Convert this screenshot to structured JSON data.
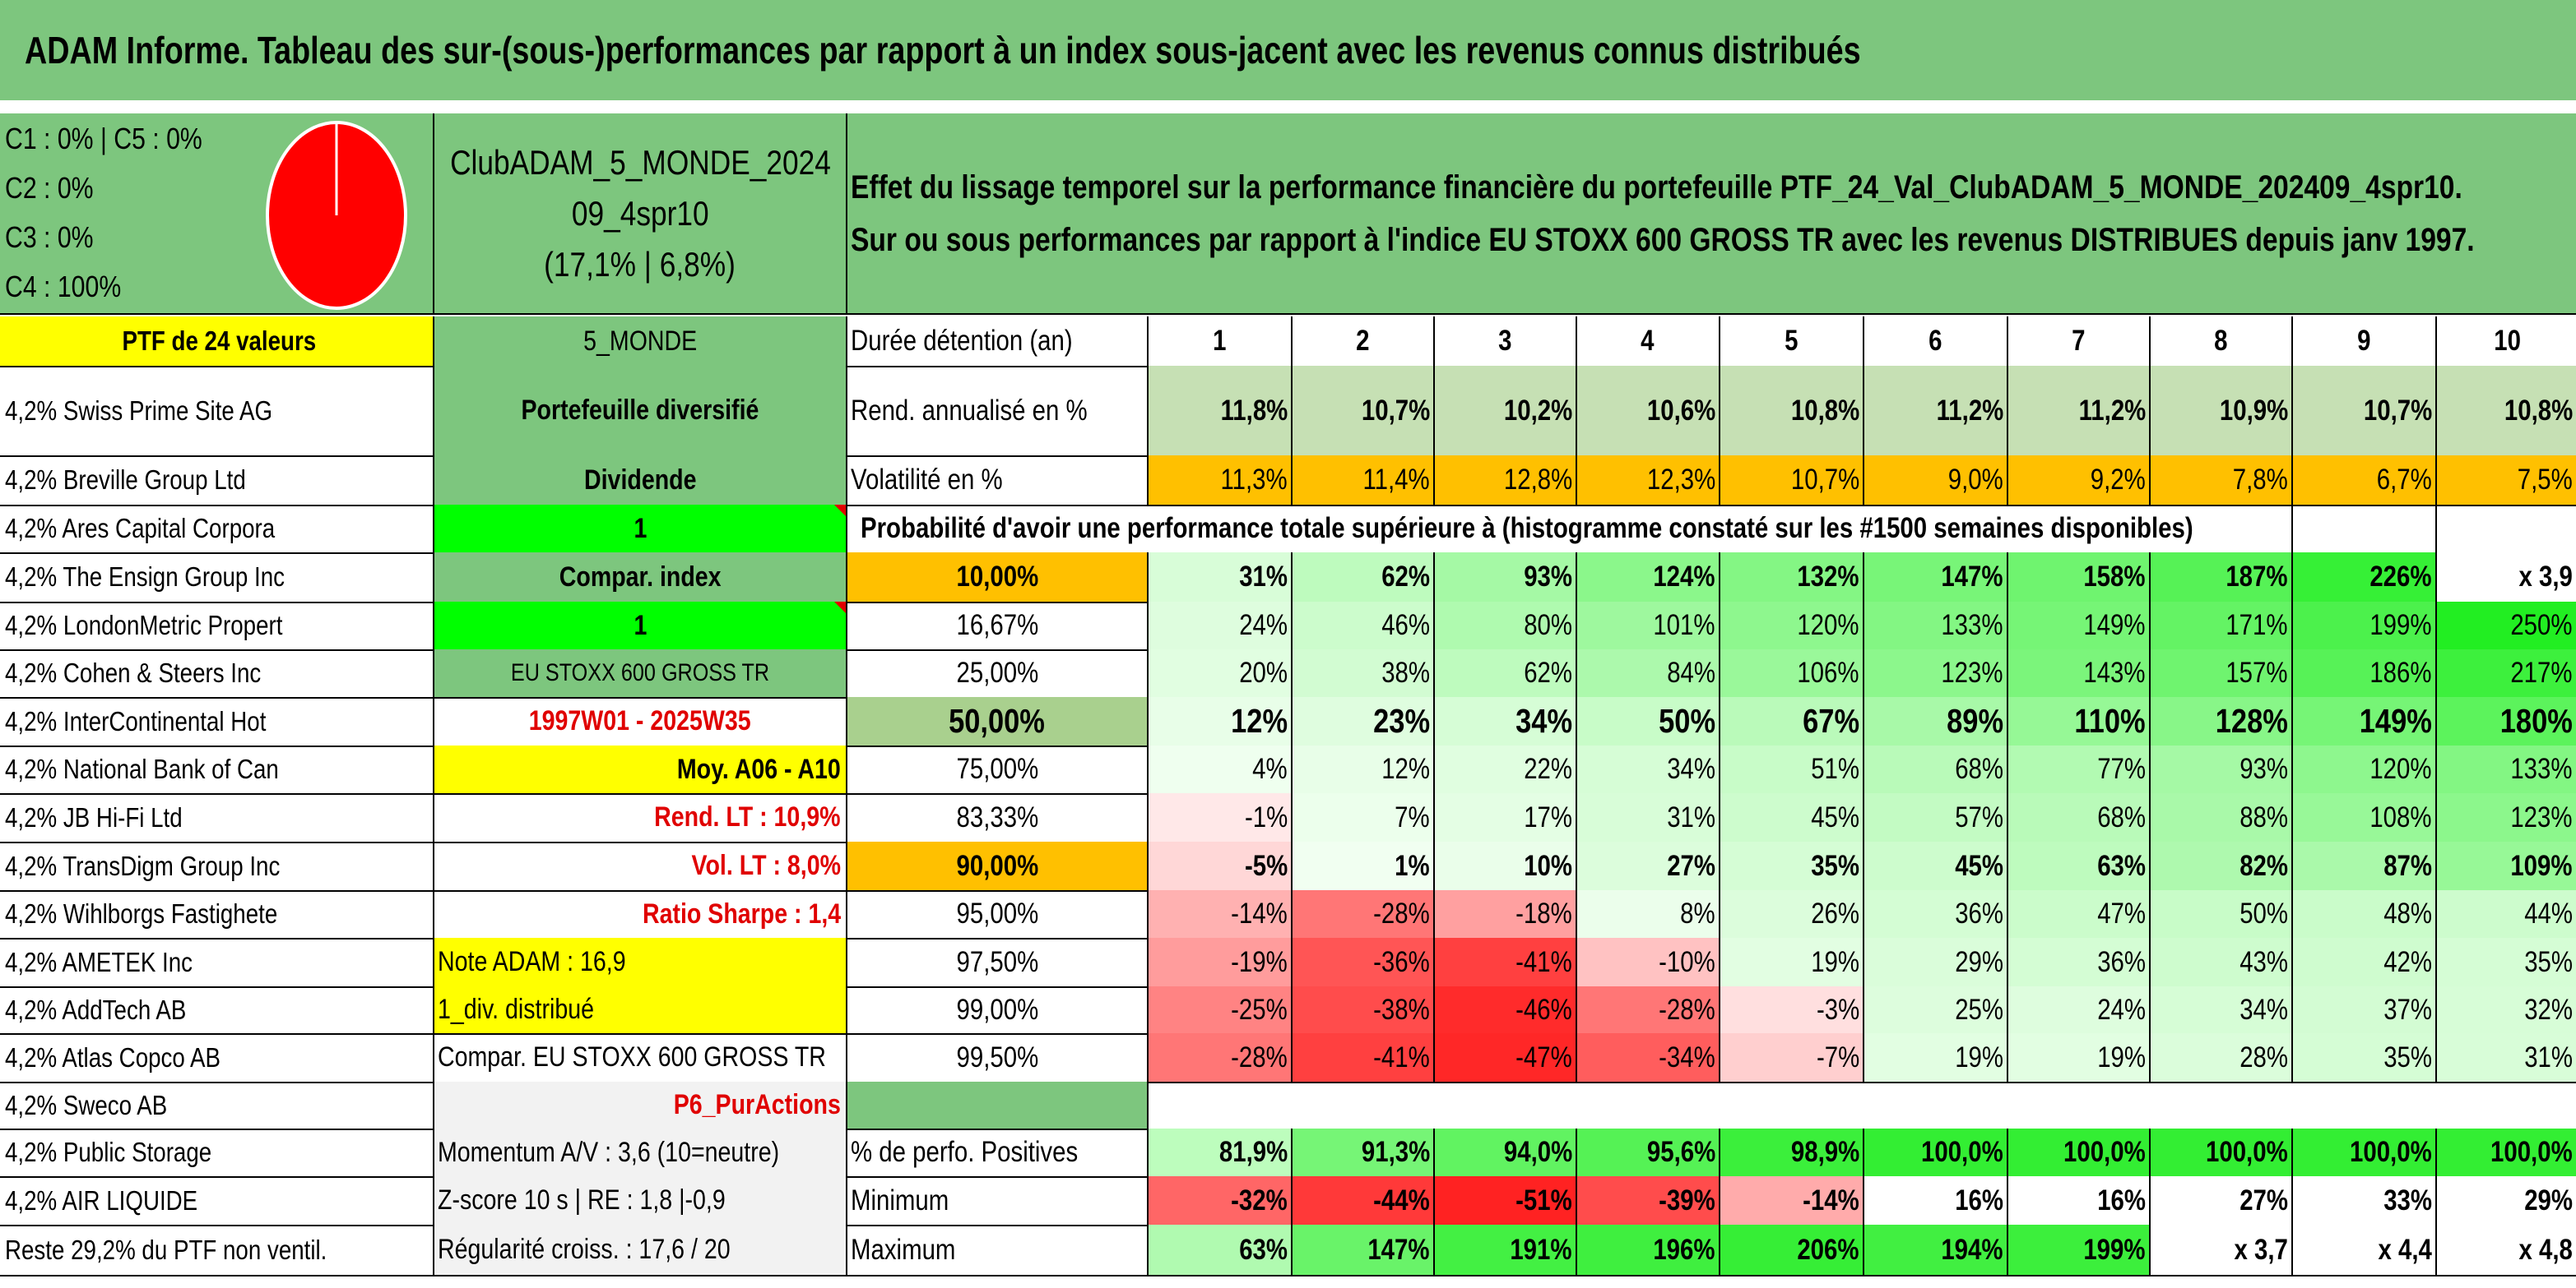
{
  "title": "ADAM Informe. Tableau des sur-(sous-)performances par rapport à un index sous-jacent avec les revenus connus distribués",
  "legend": {
    "c1_c5": "C1 : 0% | C5 : 0%",
    "c2": "C2 : 0%",
    "c3": "C3 : 0%",
    "c4": "C4 : 100%",
    "pie_color": "#ff0000"
  },
  "portfolio": {
    "name_line1": "ClubADAM_5_MONDE_2024",
    "name_line2": "09_4spr10",
    "name_line3": "(17,1% | 6,8%)"
  },
  "description": {
    "line1": "Effet du lissage temporel sur la performance financière du portefeuille PTF_24_Val_ClubADAM_5_MONDE_202409_4spr10.",
    "line2": "Sur ou sous performances par rapport à l'indice EU STOXX 600 GROSS TR avec les revenus DISTRIBUES depuis janv 1997."
  },
  "holdings": [
    "PTF de 24 valeurs",
    "4,2% Swiss Prime Site AG",
    "4,2% Breville Group Ltd",
    "4,2% Ares Capital Corpora",
    "4,2% The Ensign Group Inc",
    "4,2% LondonMetric Propert",
    "4,2% Cohen & Steers Inc",
    "4,2% InterContinental Hot",
    "4,2% National Bank of Can",
    "4,2% JB Hi-Fi Ltd",
    "4,2% TransDigm Group Inc",
    "4,2% Wihlborgs Fastighete",
    "4,2% AMETEK Inc",
    "4,2% AddTech AB",
    "4,2% Atlas Copco AB",
    "4,2% Sweco AB",
    "4,2% Public Storage",
    "4,2% AIR LIQUIDE",
    "Reste 29,2% du PTF non ventil."
  ],
  "info": [
    "5_MONDE",
    "Portefeuille diversifié",
    "Dividende",
    "1",
    "Compar. index",
    "1",
    "EU STOXX 600 GROSS TR",
    "1997W01 - 2025W35",
    "Moy. A06 - A10",
    "Rend. LT : 10,9%",
    "Vol. LT : 8,0%",
    "Ratio Sharpe : 1,4",
    "Note ADAM : 16,9",
    "1_div. distribué",
    "Compar. EU STOXX 600 GROSS TR",
    "P6_PurActions",
    "Momentum A/V : 3,6 (10=neutre)",
    "Z-score 10 s | RE : 1,8 |-0,9",
    "Régularité croiss. : 17,6 / 20"
  ],
  "duration": {
    "label": "Durée détention (an)",
    "years": [
      "1",
      "2",
      "3",
      "4",
      "5",
      "6",
      "7",
      "8",
      "9",
      "10"
    ]
  },
  "annual_return": {
    "label": "Rend. annualisé en %",
    "values": [
      "11,8%",
      "10,7%",
      "10,2%",
      "10,6%",
      "10,8%",
      "11,2%",
      "11,2%",
      "10,9%",
      "10,7%",
      "10,8%"
    ]
  },
  "volatility": {
    "label": "Volatilité en %",
    "values": [
      "11,3%",
      "11,4%",
      "12,8%",
      "12,3%",
      "10,7%",
      "9,0%",
      "9,2%",
      "7,8%",
      "6,7%",
      "7,5%"
    ]
  },
  "probability_header": "Probabilité d'avoir une performance totale supérieure à (histogramme constaté sur les #1500 semaines disponibles)",
  "percentile_rows": [
    {
      "label": "10,00%",
      "values": [
        "31%",
        "62%",
        "93%",
        "124%",
        "132%",
        "147%",
        "158%",
        "187%",
        "226%",
        "x 3,9"
      ]
    },
    {
      "label": "16,67%",
      "values": [
        "24%",
        "46%",
        "80%",
        "101%",
        "120%",
        "133%",
        "149%",
        "171%",
        "199%",
        "250%"
      ]
    },
    {
      "label": "25,00%",
      "values": [
        "20%",
        "38%",
        "62%",
        "84%",
        "106%",
        "123%",
        "143%",
        "157%",
        "186%",
        "217%"
      ]
    },
    {
      "label": "50,00%",
      "values": [
        "12%",
        "23%",
        "34%",
        "50%",
        "67%",
        "89%",
        "110%",
        "128%",
        "149%",
        "180%"
      ]
    },
    {
      "label": "75,00%",
      "values": [
        "4%",
        "12%",
        "22%",
        "34%",
        "51%",
        "68%",
        "77%",
        "93%",
        "120%",
        "133%"
      ]
    },
    {
      "label": "83,33%",
      "values": [
        "-1%",
        "7%",
        "17%",
        "31%",
        "45%",
        "57%",
        "68%",
        "88%",
        "108%",
        "123%"
      ]
    },
    {
      "label": "90,00%",
      "values": [
        "-5%",
        "1%",
        "10%",
        "27%",
        "35%",
        "45%",
        "63%",
        "82%",
        "87%",
        "109%"
      ]
    },
    {
      "label": "95,00%",
      "values": [
        "-14%",
        "-28%",
        "-18%",
        "8%",
        "26%",
        "36%",
        "47%",
        "50%",
        "48%",
        "44%"
      ]
    },
    {
      "label": "97,50%",
      "values": [
        "-19%",
        "-36%",
        "-41%",
        "-10%",
        "19%",
        "29%",
        "36%",
        "43%",
        "42%",
        "35%"
      ]
    },
    {
      "label": "99,00%",
      "values": [
        "-25%",
        "-38%",
        "-46%",
        "-28%",
        "-3%",
        "25%",
        "24%",
        "34%",
        "37%",
        "32%"
      ]
    },
    {
      "label": "99,50%",
      "values": [
        "-28%",
        "-41%",
        "-47%",
        "-34%",
        "-7%",
        "19%",
        "19%",
        "28%",
        "35%",
        "31%"
      ]
    }
  ],
  "positive": {
    "label": "% de perfo. Positives",
    "values": [
      "81,9%",
      "91,3%",
      "94,0%",
      "95,6%",
      "98,9%",
      "100,0%",
      "100,0%",
      "100,0%",
      "100,0%",
      "100,0%"
    ]
  },
  "minimum": {
    "label": "Minimum",
    "values": [
      "-32%",
      "-44%",
      "-51%",
      "-39%",
      "-14%",
      "16%",
      "16%",
      "27%",
      "33%",
      "29%"
    ]
  },
  "maximum": {
    "label": "Maximum",
    "values": [
      "63%",
      "147%",
      "191%",
      "196%",
      "206%",
      "194%",
      "199%",
      "x 3,7",
      "x 4,4",
      "x 4,8"
    ]
  }
}
